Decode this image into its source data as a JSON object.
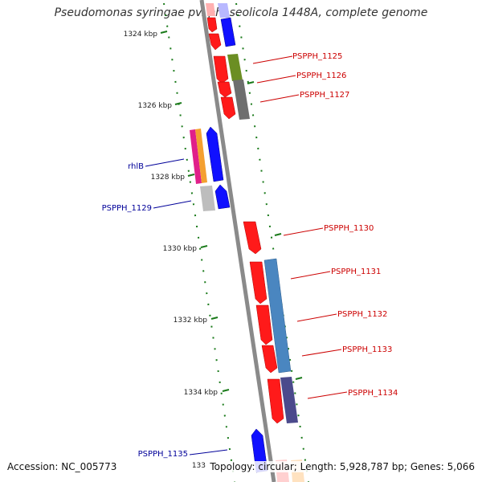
{
  "title": "Pseudomonas syringae pv. phaseolicola 1448A, complete genome",
  "footer": {
    "accession": "Accession: NC_005773",
    "stats": "Topology: circular; Length: 5,928,787 bp; Genes: 5,066"
  },
  "ticks": [
    "1324 kbp",
    "1326 kbp",
    "1328 kbp",
    "1330 kbp",
    "1332 kbp",
    "1334 kbp",
    "133"
  ],
  "labels": {
    "right": [
      "PSPPH_1125",
      "PSPPH_1126",
      "PSPPH_1127",
      "PSPPH_1130",
      "PSPPH_1131",
      "PSPPH_1132",
      "PSPPH_1133",
      "PSPPH_1134"
    ],
    "left": [
      "rhlB",
      "PSPPH_1129",
      "PSPPH_1135"
    ]
  },
  "colors": {
    "backbone": "#888888",
    "forward_gene": "#ff0000",
    "reverse_gene": "#0000ff",
    "right_label": "#cc0000",
    "left_label": "#000099",
    "tick_marks": "#116611",
    "cog_olive": "#6b8e23",
    "cog_gray": "#6e6e6e",
    "cog_steelblue": "#4a86c0",
    "cog_darkslate": "#4b4a8c",
    "cog_magenta": "#e0208a",
    "cog_orange": "#f4a030",
    "cog_silver": "#bdbdbd"
  }
}
